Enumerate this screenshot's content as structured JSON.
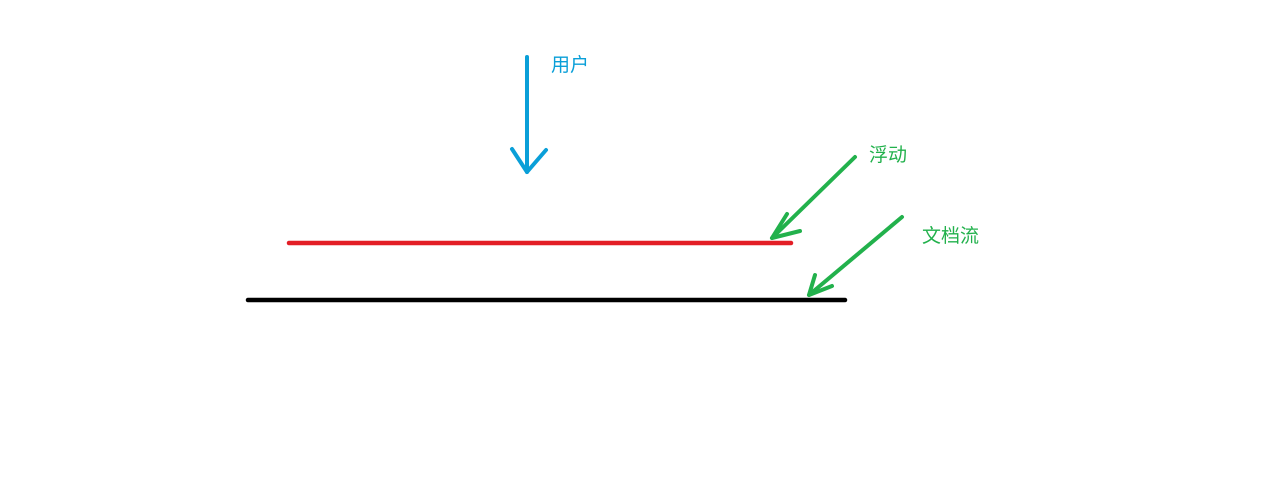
{
  "labels": {
    "user": "用户",
    "float": "浮动",
    "document_flow": "文档流"
  },
  "colors": {
    "user_arrow": "#0a9fd8",
    "float_line": "#e31e26",
    "document_flow_line": "#000000",
    "pointer_arrows": "#22b14c",
    "background": "#ffffff"
  }
}
